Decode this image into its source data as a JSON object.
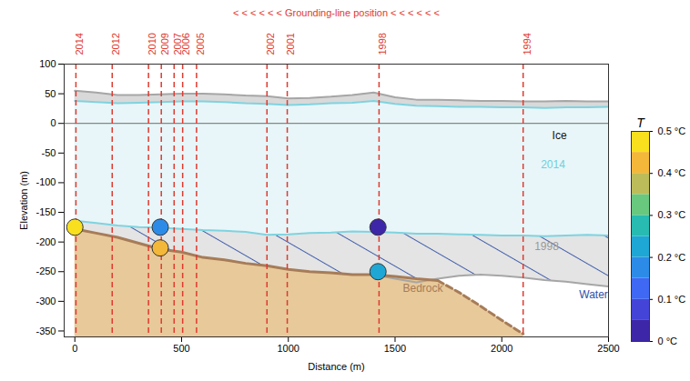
{
  "chart_data": {
    "type": "line",
    "annotation": "< < < < < < Grounding-line position < < < < < <",
    "x_label": "Distance (m)",
    "y_label": "Elevation (m)",
    "xlim": [
      -50,
      2500
    ],
    "xticks": [
      0,
      500,
      1000,
      1500,
      2000,
      2500
    ],
    "ylim": [
      -360,
      100
    ],
    "yticks": [
      -350,
      -300,
      -250,
      -200,
      -150,
      -100,
      -50,
      0,
      50,
      100
    ],
    "sea_level": 0,
    "x": [
      0,
      100,
      200,
      300,
      400,
      500,
      600,
      700,
      800,
      900,
      1000,
      1100,
      1200,
      1300,
      1400,
      1500,
      1600,
      1700,
      1800,
      1900,
      2000,
      2100,
      2200,
      2300,
      2400,
      2500
    ],
    "profiles": {
      "surface_1998": {
        "color": "#a6a6a6",
        "line_style": "solid",
        "values": [
          55,
          52,
          48,
          48,
          49,
          50,
          50,
          49,
          47,
          46,
          42,
          43,
          45,
          48,
          52,
          44,
          40,
          40,
          39,
          38,
          38,
          37,
          37,
          38,
          37,
          37
        ]
      },
      "surface_2014": {
        "color": "#7fd3df",
        "line_style": "solid",
        "values": [
          38,
          36,
          34,
          35,
          36,
          37,
          37,
          36,
          34,
          33,
          31,
          32,
          34,
          35,
          38,
          33,
          30,
          29,
          28,
          28,
          27,
          27,
          26,
          27,
          27,
          28
        ]
      },
      "base_2014": {
        "color": "#7fd3df",
        "line_style": "solid",
        "values": [
          -164,
          -168,
          -172,
          -175,
          -176,
          -178,
          -180,
          -181,
          -183,
          -188,
          -187,
          -185,
          -184,
          -182,
          -183,
          -184,
          -186,
          -186,
          -187,
          -188,
          -189,
          -189,
          -190,
          -189,
          -188,
          -189
        ]
      },
      "base_1998": {
        "color": "#a6a6a6",
        "line_style": "solid",
        "values": [
          null,
          null,
          null,
          null,
          null,
          null,
          null,
          null,
          null,
          null,
          null,
          null,
          null,
          null,
          -255,
          -262,
          -268,
          -262,
          -257,
          -255,
          -257,
          -260,
          -264,
          -267,
          -271,
          -275
        ]
      },
      "bedrock": {
        "color": "#a67c58",
        "line_style": "solid",
        "values": [
          -178,
          -185,
          -192,
          -202,
          -212,
          -217,
          -226,
          -230,
          -236,
          -240,
          -246,
          -250,
          -252,
          -255,
          -255,
          -258,
          -262,
          -265,
          null,
          null,
          null,
          null,
          null,
          null,
          null,
          null
        ]
      },
      "bedrock_inferred": {
        "color": "#a67c58",
        "line_style": "dashed",
        "values": [
          null,
          null,
          null,
          null,
          null,
          null,
          null,
          null,
          null,
          null,
          null,
          null,
          null,
          null,
          null,
          null,
          null,
          -265,
          -285,
          -308,
          -332,
          -355,
          null,
          null,
          null,
          null
        ]
      }
    },
    "grounding_lines": {
      "color": "#e03a2f",
      "labels": [
        "2014",
        "2012",
        "2010",
        "2009",
        "2007",
        "2006",
        "2005",
        "2002",
        "2001",
        "1998",
        "1994"
      ],
      "x": [
        5,
        175,
        345,
        405,
        465,
        505,
        570,
        900,
        995,
        1425,
        2100
      ]
    },
    "labels": [
      {
        "text": "Ice",
        "x": 2270,
        "y": -20,
        "color": "#111111"
      },
      {
        "text": "2014",
        "x": 2240,
        "y": -70,
        "color": "#6fcfdc"
      },
      {
        "text": "1998",
        "x": 2210,
        "y": -208,
        "color": "#999999"
      },
      {
        "text": "Water",
        "x": 2430,
        "y": -289,
        "color": "#3050a8"
      },
      {
        "text": "Bedrock",
        "x": 1630,
        "y": -278,
        "color": "#a67c58"
      }
    ],
    "points": {
      "x": [
        0,
        400,
        400,
        1420,
        1420
      ],
      "y": [
        -175,
        -175,
        -210,
        -175,
        -250
      ],
      "T": [
        0.45,
        0.18,
        0.41,
        0.03,
        0.23
      ]
    },
    "colorbar": {
      "title": "T",
      "range": [
        0,
        0.5
      ],
      "ticks": [
        {
          "value": 0,
          "label": "0 °C"
        },
        {
          "value": 0.1,
          "label": "0.1 °C"
        },
        {
          "value": 0.2,
          "label": "0.2 °C"
        },
        {
          "value": 0.3,
          "label": "0.3 °C"
        },
        {
          "value": 0.4,
          "label": "0.4 °C"
        },
        {
          "value": 0.5,
          "label": "0.5 °C"
        }
      ],
      "colors": [
        "#3e26a8",
        "#4544d8",
        "#3f68f5",
        "#2d8be8",
        "#1ea7d4",
        "#27bbb1",
        "#68c87e",
        "#bcbd5a",
        "#f3b73a",
        "#f9e01f"
      ]
    }
  }
}
